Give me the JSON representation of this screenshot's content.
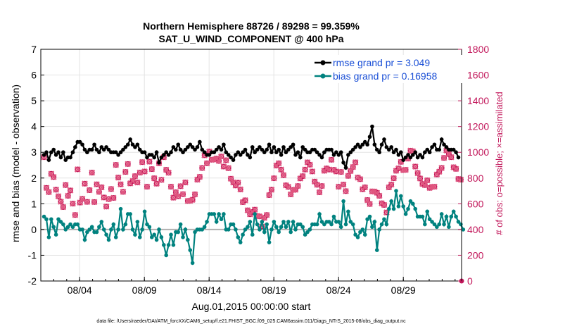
{
  "chart_data": {
    "type": "line",
    "title": "Northern Hemisphere 88726 / 89298 = 99.359%",
    "subtitle": "SAT_U_WIND_COMPONENT @ 400 hPa",
    "xlabel": "Aug.01,2015 00:00:00 start",
    "ylabel": "rmse and bias (model - observation)",
    "ylabel_right": "# of obs: o=possible; ×=assimilated",
    "ylim": [
      -2,
      7
    ],
    "ylim_right": [
      0,
      1800
    ],
    "xlim": [
      1,
      33.5
    ],
    "x_tick_labels": [
      "08/04",
      "08/09",
      "08/14",
      "08/19",
      "08/24",
      "08/29"
    ],
    "y_tick_labels": [
      "-2",
      "-1",
      "0",
      "1",
      "2",
      "3",
      "4",
      "5",
      "6",
      "7"
    ],
    "y_right_tick_labels": [
      "0",
      "200",
      "400",
      "600",
      "800",
      "1000",
      "1200",
      "1400",
      "1600",
      "1800"
    ],
    "grid": true,
    "legend_position": "top-right",
    "footer": "data file: /Users/raeder/DAI/ATM_forcXX/CAM6_setup/f.e21.FHIST_BGC.f09_025.CAM6assim.011/Diags_NTrS_2015-08/obs_diag_output.nc",
    "series": [
      {
        "name": "rmse grand pr = 3.049",
        "color": "#000000",
        "axis": "left",
        "values": [
          2.9,
          3.0,
          2.7,
          3.0,
          3.1,
          2.9,
          3.0,
          2.8,
          3.0,
          2.7,
          2.8,
          2.8,
          3.0,
          3.2,
          3.4,
          3.4,
          3.3,
          3.1,
          3.0,
          3.1,
          3.1,
          3.3,
          3.1,
          3.0,
          3.2,
          3.1,
          3.2,
          3.1,
          3.0,
          3.0,
          3.0,
          2.9,
          3.0,
          3.1,
          3.2,
          3.3,
          3.5,
          3.3,
          3.2,
          3.3,
          3.1,
          3.0,
          3.0,
          2.8,
          2.9,
          2.9,
          2.8,
          3.0,
          2.6,
          2.8,
          2.9,
          3.0,
          2.9,
          3.0,
          3.2,
          3.1,
          3.3,
          3.1,
          3.0,
          3.1,
          3.2,
          3.3,
          3.2,
          3.1,
          3.2,
          3.4,
          3.1,
          3.0,
          2.9,
          2.9,
          3.0,
          3.0,
          3.1,
          3.2,
          3.1,
          3.3,
          3.0,
          2.9,
          2.8,
          2.7,
          2.9,
          3.0,
          2.9,
          3.0,
          3.1,
          2.9,
          2.8,
          3.2,
          3.0,
          3.1,
          3.2,
          3.1,
          3.0,
          3.1,
          3.3,
          3.0,
          3.2,
          3.0,
          3.1,
          2.9,
          3.2,
          3.0,
          3.1,
          3.2,
          3.3,
          2.9,
          3.0,
          2.8,
          3.2,
          3.1,
          3.0,
          3.0,
          3.1,
          3.1,
          3.0,
          2.9,
          2.8,
          3.0,
          3.1,
          3.1,
          3.1,
          2.9,
          3.0,
          2.9,
          3.0,
          2.6,
          2.4,
          2.9,
          3.0,
          3.1,
          3.2,
          3.3,
          3.2,
          3.3,
          3.4,
          3.3,
          3.6,
          4.0,
          3.3,
          3.1,
          3.0,
          3.3,
          3.5,
          3.2,
          3.1,
          3.2,
          3.0,
          3.1,
          2.9,
          3.0,
          2.7,
          2.8,
          2.9,
          2.8,
          2.9,
          3.0,
          2.8,
          2.9,
          2.8,
          3.0,
          3.1,
          3.0,
          3.2,
          3.3,
          3.1,
          3.1,
          3.5,
          3.3,
          3.2,
          3.1,
          3.1,
          3.1,
          3.0,
          2.8
        ]
      },
      {
        "name": "bias grand pr = 0.16958",
        "color": "#00827f",
        "axis": "left",
        "values": [
          0.5,
          0.4,
          -0.3,
          0.4,
          0.1,
          -0.2,
          0.4,
          0.3,
          0.2,
          0.0,
          0.1,
          0.2,
          0.1,
          0.2,
          0.2,
          0.0,
          0.0,
          -0.4,
          -0.1,
          0.0,
          0.1,
          -0.1,
          -0.1,
          0.1,
          0.3,
          0.0,
          -0.2,
          -0.4,
          0.0,
          0.2,
          -0.3,
          0.0,
          0.8,
          0.0,
          0.2,
          0.6,
          0.6,
          0.0,
          -0.2,
          0.3,
          -0.3,
          0.0,
          0.7,
          0.2,
          0.1,
          -0.3,
          -0.2,
          -0.4,
          0.0,
          -0.3,
          -0.6,
          -1.0,
          -0.6,
          -0.2,
          -0.6,
          -0.1,
          -0.1,
          0.2,
          -0.3,
          0.0,
          -0.4,
          -0.8,
          -1.3,
          -0.1,
          0.0,
          0.0,
          0.0,
          0.1,
          0.3,
          0.6,
          0.6,
          0.6,
          0.3,
          0.6,
          0.4,
          0.6,
          0.0,
          0.0,
          0.2,
          0.2,
          0.0,
          -0.3,
          -0.5,
          -0.2,
          0.0,
          0.1,
          0.3,
          -0.2,
          0.6,
          0.2,
          0.0,
          0.3,
          -0.1,
          0.2,
          -0.5,
          0.0,
          0.3,
          0.1,
          -0.1,
          0.1,
          0.3,
          0.1,
          0.3,
          -0.1,
          0.3,
          0.0,
          0.2,
          0.2,
          0.1,
          -0.2,
          -0.1,
          0.0,
          0.2,
          0.2,
          0.2,
          0.6,
          0.3,
          0.2,
          0.3,
          0.3,
          0.2,
          0.5,
          0.3,
          0.3,
          0.1,
          1.1,
          0.2,
          0.7,
          0.3,
          0.2,
          -0.2,
          -0.3,
          -0.1,
          0.0,
          -0.2,
          0.4,
          0.5,
          0.1,
          0.3,
          -0.8,
          0.0,
          0.2,
          0.4,
          0.2,
          0.8,
          1.1,
          0.8,
          1.5,
          0.9,
          1.3,
          0.9,
          0.6,
          0.8,
          1.1,
          1.0,
          0.8,
          0.5,
          0.5,
          0.5,
          0.2,
          0.7,
          0.4,
          0.3,
          0.2,
          0.1,
          0.2,
          0.6,
          0.2,
          0.5,
          0.1,
          0.5,
          0.7,
          0.5,
          0.3,
          0.2,
          0.0
        ]
      },
      {
        "name": "possible",
        "color": "#c2185b",
        "axis": "right",
        "values": [
          940,
          740,
          680,
          860,
          780,
          720,
          680,
          600,
          580,
          740,
          640,
          720,
          590,
          540,
          840,
          620,
          660,
          740,
          620,
          700,
          820,
          630,
          740,
          720,
          700,
          660,
          600,
          620,
          720,
          640,
          880,
          820,
          740,
          720,
          820,
          920,
          780,
          760,
          820,
          760,
          820,
          940,
          840,
          760,
          900,
          880,
          820,
          740,
          920,
          780,
          940,
          880,
          830,
          760,
          620,
          700,
          680,
          720,
          680,
          760,
          600,
          640,
          620,
          700,
          760,
          820,
          900,
          960,
          920,
          1000,
          920,
          960,
          940,
          960,
          940,
          900,
          960,
          860,
          800,
          760,
          720,
          780,
          700,
          640,
          600,
          560,
          540,
          520,
          560,
          500,
          480,
          440,
          480,
          540,
          640,
          720,
          820,
          880,
          920,
          860,
          800,
          760,
          720,
          700,
          680,
          720,
          760,
          780,
          820,
          860,
          900,
          920,
          840,
          800,
          720,
          700,
          760,
          840,
          880,
          860,
          920,
          880,
          840,
          760,
          820,
          760,
          720,
          800,
          860,
          880,
          900,
          820,
          780,
          740,
          700,
          640,
          620,
          680,
          700,
          680,
          640,
          620,
          580,
          560,
          700,
          760,
          820,
          840,
          880,
          920,
          840,
          880,
          940,
          1040,
          980,
          900,
          860,
          780,
          760,
          740,
          760,
          740,
          720,
          760,
          800,
          860,
          900,
          940,
          1020,
          980,
          940,
          900,
          860,
          820,
          760
        ]
      },
      {
        "name": "assimilated",
        "color": "#e0567f",
        "axis": "right",
        "values": [
          940,
          740,
          680,
          860,
          780,
          720,
          680,
          600,
          580,
          740,
          640,
          720,
          590,
          540,
          840,
          620,
          660,
          740,
          620,
          700,
          820,
          630,
          740,
          720,
          700,
          660,
          600,
          620,
          720,
          640,
          880,
          820,
          740,
          720,
          820,
          920,
          780,
          760,
          820,
          760,
          820,
          940,
          840,
          760,
          900,
          880,
          820,
          740,
          920,
          780,
          940,
          880,
          830,
          760,
          620,
          700,
          680,
          720,
          680,
          760,
          600,
          640,
          620,
          700,
          760,
          820,
          900,
          960,
          920,
          1000,
          920,
          960,
          940,
          960,
          940,
          900,
          960,
          860,
          800,
          760,
          720,
          780,
          700,
          640,
          600,
          560,
          540,
          520,
          560,
          500,
          480,
          440,
          480,
          540,
          640,
          720,
          820,
          880,
          920,
          860,
          800,
          760,
          720,
          700,
          680,
          720,
          760,
          780,
          820,
          860,
          900,
          920,
          840,
          800,
          720,
          700,
          760,
          840,
          880,
          860,
          920,
          880,
          840,
          760,
          820,
          760,
          720,
          800,
          860,
          880,
          900,
          820,
          780,
          740,
          700,
          640,
          620,
          680,
          700,
          680,
          640,
          620,
          580,
          560,
          700,
          760,
          820,
          840,
          880,
          920,
          840,
          880,
          940,
          1040,
          980,
          900,
          860,
          780,
          760,
          740,
          760,
          740,
          720,
          760,
          800,
          860,
          900,
          940,
          1020,
          980,
          940,
          900,
          860,
          820,
          760
        ]
      }
    ]
  }
}
